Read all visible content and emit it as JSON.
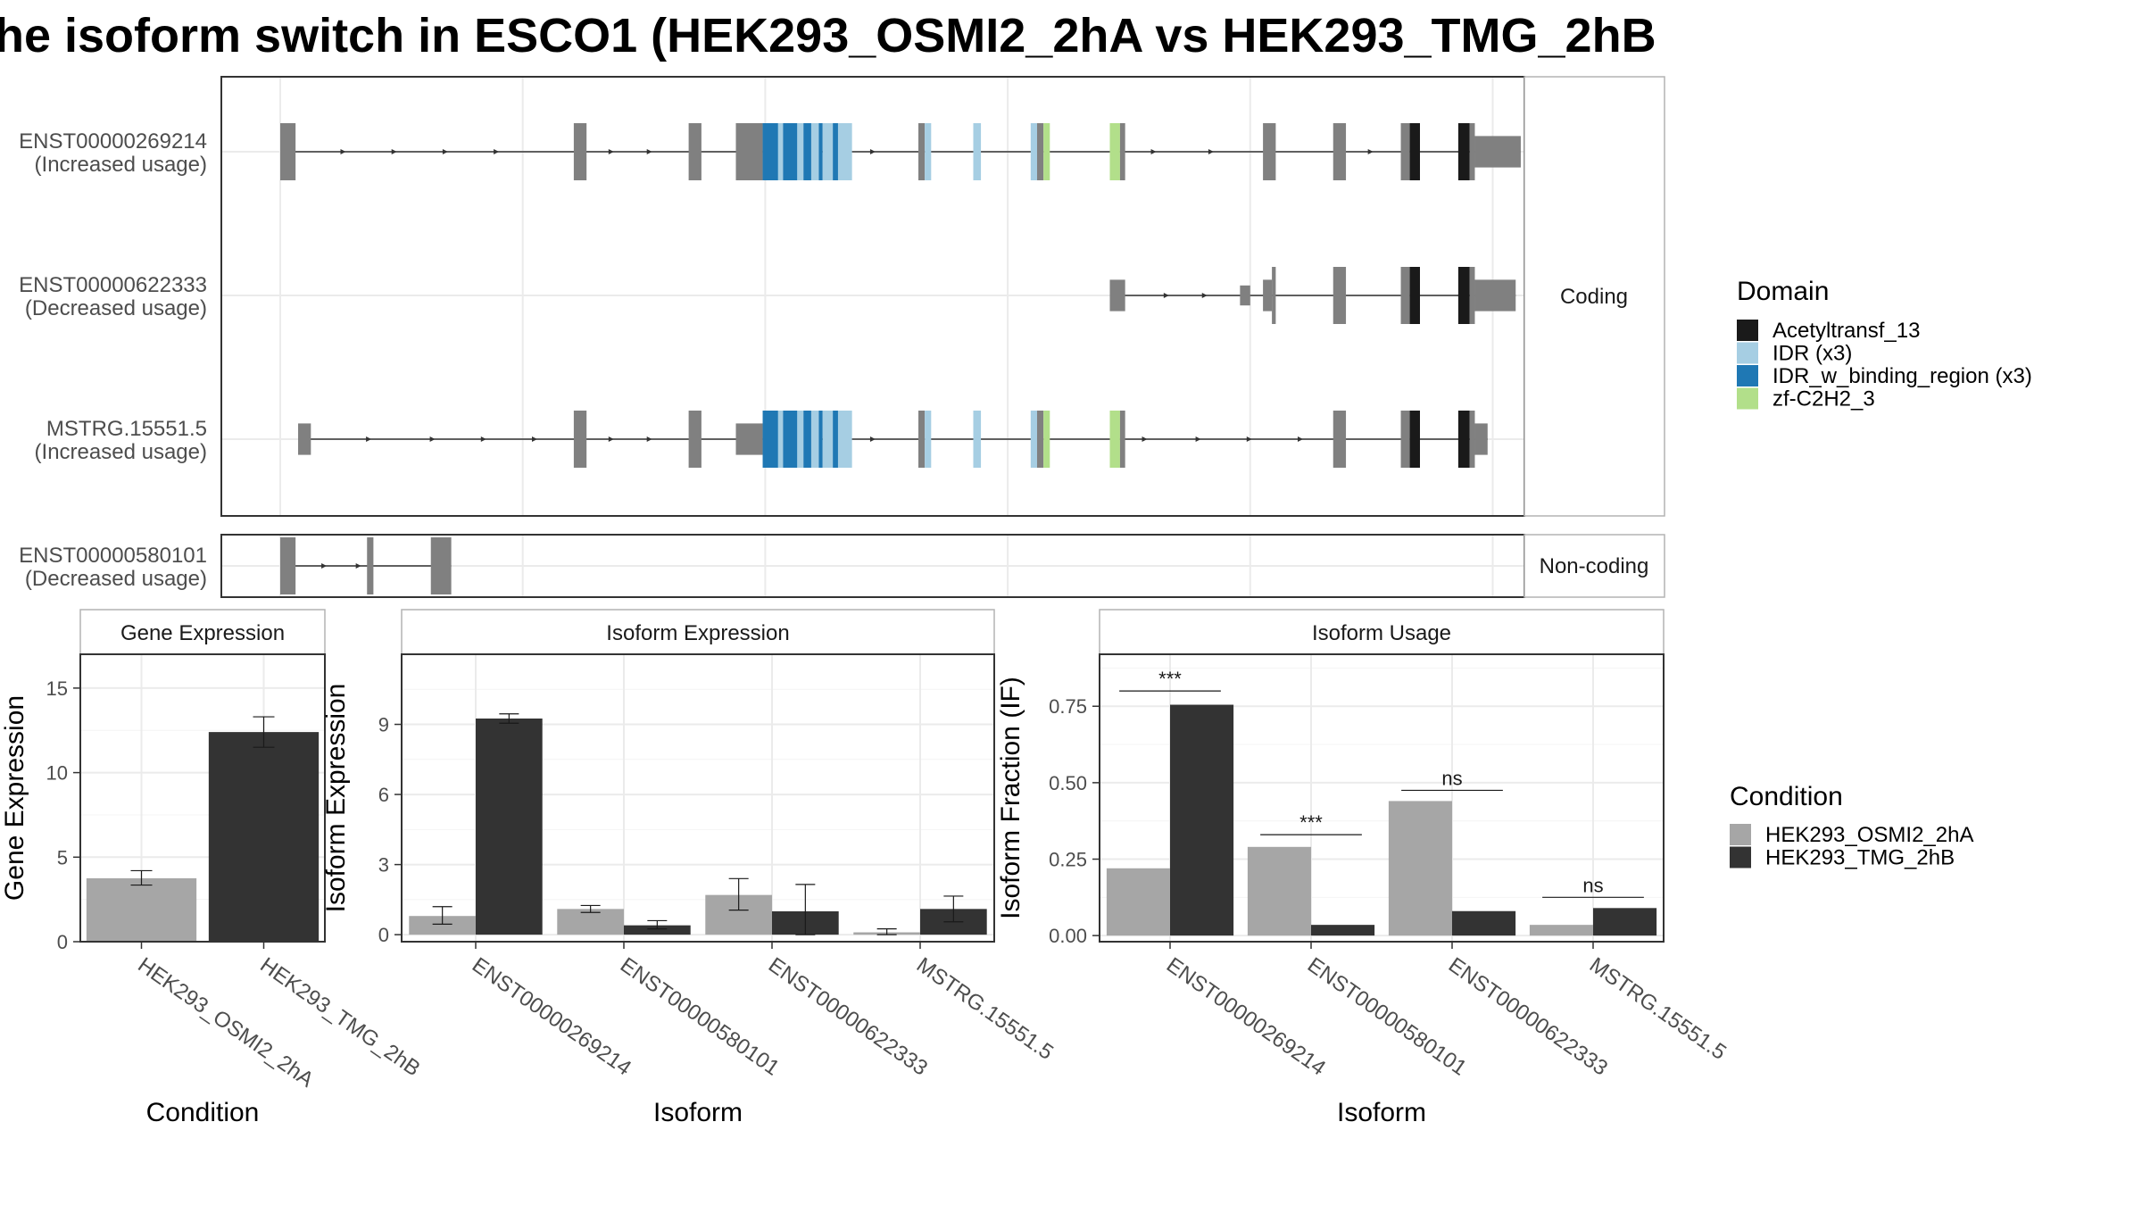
{
  "title": "he isoform switch in ESCO1 (HEK293_OSMI2_2hA vs HEK293_TMG_2hB",
  "colors": {
    "exon": "#808080",
    "intron": "#333333",
    "panel_border": "#333333",
    "strip_border": "#b3b3b3",
    "grid": "#ebebeb",
    "cond_a": "#a6a6a6",
    "cond_b": "#333333"
  },
  "structure": {
    "coding_strip": "Coding",
    "noncoding_strip": "Non-coding",
    "coding_tracks": [
      {
        "id": "ENST00000269214",
        "usage": "(Increased usage)",
        "exons": [
          [
            0,
            1.2,
            "exon",
            1
          ],
          [
            23,
            24,
            "exon",
            1
          ],
          [
            32,
            33,
            "exon",
            1
          ],
          [
            35.7,
            37.8,
            "exon",
            1
          ],
          [
            37.8,
            42.5,
            "IDR_w_binding_region",
            1
          ],
          [
            39.0,
            39.4,
            "IDR",
            1
          ],
          [
            40.5,
            41.0,
            "IDR",
            1
          ],
          [
            41.6,
            42.2,
            "IDR",
            1
          ],
          [
            42.5,
            44.8,
            "IDR",
            1
          ],
          [
            43.3,
            43.7,
            "IDR_w_binding_region",
            1
          ],
          [
            50.0,
            50.5,
            "exon",
            1
          ],
          [
            50.5,
            51.0,
            "IDR",
            1
          ],
          [
            54.3,
            54.9,
            "IDR",
            1
          ],
          [
            58.8,
            59.3,
            "IDR",
            1
          ],
          [
            59.3,
            59.8,
            "exon",
            1
          ],
          [
            59.8,
            60.3,
            "zf",
            1
          ],
          [
            65.0,
            65.8,
            "zf",
            1
          ],
          [
            65.8,
            66.2,
            "exon",
            1
          ],
          [
            77.0,
            78.0,
            "exon",
            1
          ],
          [
            82.5,
            83.5,
            "exon",
            1
          ],
          [
            87.8,
            88.5,
            "exon",
            1
          ],
          [
            88.5,
            89.3,
            "acetyl",
            1
          ],
          [
            92.3,
            93.2,
            "acetyl",
            1
          ],
          [
            93.2,
            93.6,
            "exon",
            1
          ],
          [
            93.6,
            97.2,
            "exon",
            0.55
          ]
        ],
        "arrows": [
          5,
          9,
          13,
          17,
          26,
          29,
          46.5,
          68.5,
          73,
          85.5
        ]
      },
      {
        "id": "ENST00000622333",
        "usage": "(Decreased usage)",
        "exons": [
          [
            65.0,
            66.2,
            "exon",
            0.55
          ],
          [
            75.2,
            76.0,
            "exon",
            0.35
          ],
          [
            77.0,
            77.7,
            "exon",
            0.55
          ],
          [
            77.7,
            78.0,
            "exon",
            1
          ],
          [
            82.5,
            83.5,
            "exon",
            1
          ],
          [
            87.8,
            88.5,
            "exon",
            1
          ],
          [
            88.5,
            89.3,
            "acetyl",
            1
          ],
          [
            92.3,
            93.2,
            "acetyl",
            1
          ],
          [
            93.2,
            93.6,
            "exon",
            1
          ],
          [
            93.6,
            96.8,
            "exon",
            0.55
          ]
        ],
        "arrows": [
          69.5,
          72.5
        ]
      },
      {
        "id": "MSTRG.15551.5",
        "usage": "(Increased usage)",
        "exons": [
          [
            1.4,
            2.4,
            "exon",
            0.55
          ],
          [
            23,
            24,
            "exon",
            1
          ],
          [
            32,
            33,
            "exon",
            1
          ],
          [
            35.7,
            37.8,
            "exon",
            0.55
          ],
          [
            37.8,
            42.5,
            "IDR_w_binding_region",
            1
          ],
          [
            39.0,
            39.4,
            "IDR",
            1
          ],
          [
            40.5,
            41.0,
            "IDR",
            1
          ],
          [
            41.6,
            42.2,
            "IDR",
            1
          ],
          [
            42.5,
            44.8,
            "IDR",
            1
          ],
          [
            43.3,
            43.7,
            "IDR_w_binding_region",
            1
          ],
          [
            50.0,
            50.5,
            "exon",
            1
          ],
          [
            50.5,
            51.0,
            "IDR",
            1
          ],
          [
            54.3,
            54.9,
            "IDR",
            1
          ],
          [
            58.8,
            59.3,
            "IDR",
            1
          ],
          [
            59.3,
            59.8,
            "exon",
            1
          ],
          [
            59.8,
            60.3,
            "zf",
            1
          ],
          [
            65.0,
            65.8,
            "zf",
            1
          ],
          [
            65.8,
            66.2,
            "exon",
            1
          ],
          [
            82.5,
            83.5,
            "exon",
            1
          ],
          [
            87.8,
            88.5,
            "exon",
            1
          ],
          [
            88.5,
            89.3,
            "acetyl",
            1
          ],
          [
            92.3,
            93.2,
            "acetyl",
            1
          ],
          [
            93.2,
            93.6,
            "exon",
            1
          ],
          [
            93.6,
            94.6,
            "exon",
            0.55
          ]
        ],
        "arrows": [
          7,
          12,
          16,
          20,
          26,
          29,
          46.5,
          67.8,
          72,
          76,
          80
        ]
      }
    ],
    "noncoding_tracks": [
      {
        "id": "ENST00000580101",
        "usage": "(Decreased usage)",
        "exons": [
          [
            0,
            1.2,
            "exon",
            1
          ],
          [
            6.8,
            7.3,
            "exon",
            1
          ],
          [
            11.8,
            13.4,
            "exon",
            1
          ]
        ],
        "arrows": [
          3.5,
          6.2
        ]
      }
    ]
  },
  "domain_legend": {
    "title": "Domain",
    "items": [
      {
        "label": "Acetyltransf_13",
        "key": "acetyl",
        "color": "#1a1a1a"
      },
      {
        "label": "IDR (x3)",
        "key": "IDR",
        "color": "#a6cee3"
      },
      {
        "label": "IDR_w_binding_region (x3)",
        "key": "IDR_w_binding_region",
        "color": "#1f78b4"
      },
      {
        "label": "zf-C2H2_3",
        "key": "zf",
        "color": "#b2df8a"
      }
    ]
  },
  "condition_legend": {
    "title": "Condition",
    "items": [
      {
        "label": "HEK293_OSMI2_2hA",
        "color": "#a6a6a6"
      },
      {
        "label": "HEK293_TMG_2hB",
        "color": "#333333"
      }
    ]
  },
  "chart_data": [
    {
      "type": "bar",
      "title": "Gene Expression",
      "xlabel": "Condition",
      "ylabel": "Gene Expression",
      "ylim": [
        0,
        17
      ],
      "yticks": [
        0,
        5,
        10,
        15
      ],
      "categories": [
        "HEK293_OSMI2_2hA",
        "HEK293_TMG_2hB"
      ],
      "values": [
        3.75,
        12.4
      ],
      "error_low": [
        3.35,
        11.5
      ],
      "error_high": [
        4.2,
        13.3
      ]
    },
    {
      "type": "bar",
      "title": "Isoform Expression",
      "xlabel": "Isoform",
      "ylabel": "Isoform Expression",
      "ylim": [
        -0.3,
        12
      ],
      "yticks": [
        0,
        3,
        6,
        9
      ],
      "categories": [
        "ENST00000269214",
        "ENST00000580101",
        "ENST00000622333",
        "MSTRG.15551.5"
      ],
      "series": [
        {
          "name": "HEK293_OSMI2_2hA",
          "values": [
            0.8,
            1.1,
            1.7,
            0.1
          ],
          "error_low": [
            0.45,
            0.95,
            1.05,
            0.0
          ],
          "error_high": [
            1.2,
            1.25,
            2.4,
            0.25
          ]
        },
        {
          "name": "HEK293_TMG_2hB",
          "values": [
            9.25,
            0.4,
            1.0,
            1.1
          ],
          "error_low": [
            9.05,
            0.25,
            0.0,
            0.55
          ],
          "error_high": [
            9.45,
            0.6,
            2.15,
            1.65
          ]
        }
      ]
    },
    {
      "type": "bar",
      "title": "Isoform Usage",
      "xlabel": "Isoform",
      "ylabel": "Isoform Fraction (IF)",
      "ylim": [
        -0.02,
        0.92
      ],
      "yticks": [
        0.0,
        0.25,
        0.5,
        0.75
      ],
      "ytick_labels": [
        "0.00",
        "0.25",
        "0.50",
        "0.75"
      ],
      "categories": [
        "ENST00000269214",
        "ENST00000580101",
        "ENST00000622333",
        "MSTRG.15551.5"
      ],
      "series": [
        {
          "name": "HEK293_OSMI2_2hA",
          "values": [
            0.22,
            0.29,
            0.44,
            0.035
          ]
        },
        {
          "name": "HEK293_TMG_2hB",
          "values": [
            0.755,
            0.035,
            0.08,
            0.09
          ]
        }
      ],
      "significance": [
        "***",
        "***",
        "ns",
        "ns"
      ],
      "significance_y": [
        0.8,
        0.33,
        0.475,
        0.125
      ]
    }
  ]
}
